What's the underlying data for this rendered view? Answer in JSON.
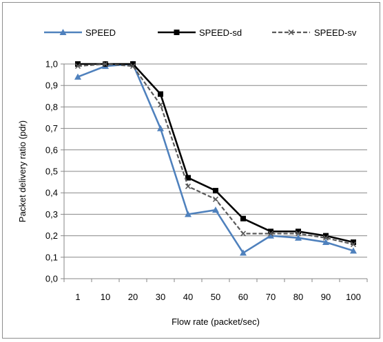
{
  "chart_data": {
    "type": "line",
    "categories": [
      "1",
      "10",
      "20",
      "30",
      "40",
      "50",
      "60",
      "70",
      "80",
      "90",
      "100"
    ],
    "series": [
      {
        "name": "SPEED",
        "color": "#4f81bd",
        "marker": "triangle",
        "dash": "solid",
        "values": [
          0.94,
          0.99,
          1.0,
          0.7,
          0.3,
          0.32,
          0.12,
          0.2,
          0.19,
          0.17,
          0.13
        ]
      },
      {
        "name": "SPEED-sd",
        "color": "#000000",
        "marker": "square",
        "dash": "solid",
        "values": [
          1.0,
          1.0,
          1.0,
          0.86,
          0.47,
          0.41,
          0.28,
          0.22,
          0.22,
          0.2,
          0.17
        ]
      },
      {
        "name": "SPEED-sv",
        "color": "#595959",
        "marker": "x",
        "dash": "dashed",
        "values": [
          0.99,
          1.0,
          0.99,
          0.81,
          0.43,
          0.37,
          0.21,
          0.21,
          0.21,
          0.19,
          0.16
        ]
      }
    ],
    "y_ticks": [
      "0,0",
      "0,1",
      "0,2",
      "0,3",
      "0,4",
      "0,5",
      "0,6",
      "0,7",
      "0,8",
      "0,9",
      "1,0"
    ],
    "ylim": [
      0,
      1
    ],
    "xlabel": "Flow rate (packet/sec)",
    "ylabel": "Packet delivery ratio (pdr)",
    "grid": "horizontal",
    "legend_position": "top"
  }
}
